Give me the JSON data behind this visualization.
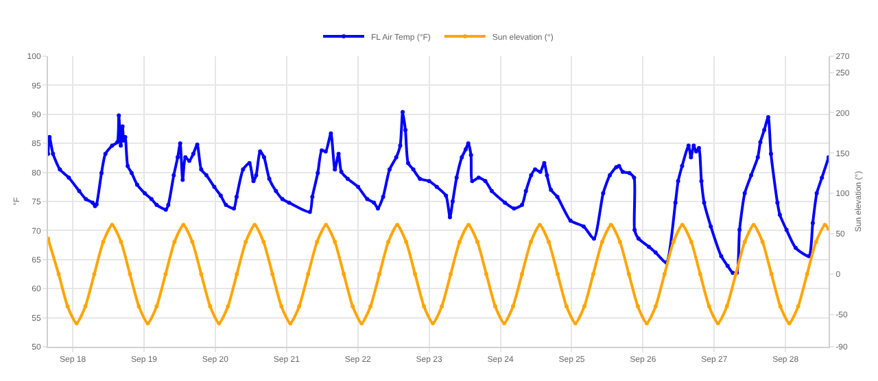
{
  "chart_data": {
    "type": "line",
    "ylabel": "°F",
    "y2label": "Sun elevation (°)",
    "legend": "top",
    "grid": true,
    "marker": "circle",
    "line_style": "solid",
    "xlim": [
      "--09-17T15:40",
      "--09-28T14:30"
    ],
    "xticks": [
      {
        "value": "--09-18",
        "label": "Sep 18"
      },
      {
        "value": "--09-19",
        "label": "Sep 19"
      },
      {
        "value": "--09-20",
        "label": "Sep 20"
      },
      {
        "value": "--09-21",
        "label": "Sep 21"
      },
      {
        "value": "--09-22",
        "label": "Sep 22"
      },
      {
        "value": "--09-23",
        "label": "Sep 23"
      },
      {
        "value": "--09-24",
        "label": "Sep 24"
      },
      {
        "value": "--09-25",
        "label": "Sep 25"
      },
      {
        "value": "--09-26",
        "label": "Sep 26"
      },
      {
        "value": "--09-27",
        "label": "Sep 27"
      },
      {
        "value": "--09-28",
        "label": "Sep 28"
      }
    ],
    "ylim": [
      50,
      100
    ],
    "yticks": [
      50,
      55,
      60,
      65,
      70,
      75,
      80,
      85,
      90,
      95,
      100
    ],
    "y2lim": [
      -90,
      270
    ],
    "y2ticks": [
      -90,
      -50,
      0,
      50,
      100,
      150,
      200,
      250,
      270
    ],
    "series": [
      {
        "name": "FL Air Temp (°F)",
        "color": "#0000ff",
        "x": [
          "--09-17T15:40",
          "--09-17T16:10",
          "--09-17T17:20",
          "--09-17T19:40",
          "--09-17T22:40",
          "--09-18T02:10",
          "--09-18T04:25",
          "--09-18T06:40",
          "--09-18T07:30",
          "--09-18T08:00",
          "--09-18T09:40",
          "--09-18T11:00",
          "--09-18T13:15",
          "--09-18T15:00",
          "--09-18T15:30",
          "--09-18T16:10",
          "--09-18T16:45",
          "--09-18T17:10",
          "--09-18T17:40",
          "--09-18T18:30",
          "--09-18T19:50",
          "--09-18T21:40",
          "--09-19T00:15",
          "--09-19T02:30",
          "--09-19T04:15",
          "--09-19T07:20",
          "--09-19T08:10",
          "--09-19T10:00",
          "--09-19T11:20",
          "--09-19T12:10",
          "--09-19T13:00",
          "--09-19T13:55",
          "--09-19T15:15",
          "--09-19T16:35",
          "--09-19T17:55",
          "--09-19T19:15",
          "--09-19T21:00",
          "--09-19T23:40",
          "--09-20T01:50",
          "--09-20T03:35",
          "--09-20T06:15",
          "--09-20T07:10",
          "--09-20T09:20",
          "--09-20T11:30",
          "--09-20T12:50",
          "--09-20T13:45",
          "--09-20T15:05",
          "--09-20T16:25",
          "--09-20T18:10",
          "--09-20T20:25",
          "--09-20T22:35",
          "--09-21T00:50",
          "--09-21T07:50",
          "--09-21T08:40",
          "--09-21T10:30",
          "--09-21T11:50",
          "--09-21T13:10",
          "--09-21T14:55",
          "--09-21T16:15",
          "--09-21T17:30",
          "--09-21T18:25",
          "--09-21T20:35",
          "--09-22T00:05",
          "--09-22T03:10",
          "--09-22T05:25",
          "--09-22T06:45",
          "--09-22T08:30",
          "--09-22T10:40",
          "--09-22T12:55",
          "--09-22T14:15",
          "--09-22T15:05",
          "--09-22T16:00",
          "--09-22T16:55",
          "--09-22T18:40",
          "--09-22T20:55",
          "--09-23T00:00",
          "--09-23T02:35",
          "--09-23T05:40",
          "--09-23T07:00",
          "--09-23T07:55",
          "--09-23T09:15",
          "--09-23T11:00",
          "--09-23T12:20",
          "--09-23T13:10",
          "--09-23T14:05",
          "--09-23T14:30",
          "--09-23T16:40",
          "--09-23T18:55",
          "--09-23T21:05",
          "--09-24T01:30",
          "--09-24T04:35",
          "--09-24T07:15",
          "--09-24T08:35",
          "--09-24T10:20",
          "--09-24T11:40",
          "--09-24T13:25",
          "--09-24T14:45",
          "--09-24T15:40",
          "--09-24T17:00",
          "--09-24T19:10",
          "--09-24T23:35",
          "--09-25T04:00",
          "--09-25T07:30",
          "--09-25T10:35",
          "--09-25T12:50",
          "--09-25T15:00",
          "--09-25T15:55",
          "--09-25T17:10",
          "--09-25T19:25",
          "--09-25T21:00",
          "--09-25T21:10",
          "--09-25T22:30",
          "--09-26T02:00",
          "--09-26T04:15",
          "--09-26T07:50",
          "--09-26T10:55",
          "--09-26T11:50",
          "--09-26T13:10",
          "--09-26T15:20",
          "--09-26T16:10",
          "--09-26T17:05",
          "--09-26T17:55",
          "--09-26T18:50",
          "--09-26T19:40",
          "--09-26T20:35",
          "--09-26T22:50",
          "--09-27T02:20",
          "--09-27T04:30",
          "--09-27T06:15",
          "--09-27T07:35",
          "--09-27T08:30",
          "--09-27T10:15",
          "--09-27T12:25",
          "--09-27T14:40",
          "--09-27T15:30",
          "--09-27T16:50",
          "--09-27T18:10",
          "--09-27T19:05",
          "--09-27T21:15",
          "--09-27T22:05",
          "--09-28T00:20",
          "--09-28T03:25",
          "--09-28T07:50",
          "--09-28T09:10",
          "--09-28T10:30",
          "--09-28T12:15",
          "--09-28T14:30"
        ],
        "values": [
          83.2,
          86.1,
          83.2,
          80.5,
          79.1,
          76.8,
          75.4,
          74.8,
          74.2,
          74.5,
          79.9,
          83.2,
          84.6,
          85.2,
          89.8,
          84.6,
          87.9,
          85.5,
          86.1,
          81.1,
          79.9,
          77.9,
          76.4,
          75.4,
          74.4,
          73.6,
          74.4,
          79.5,
          82.6,
          85.0,
          78.7,
          82.6,
          82.0,
          83.2,
          84.8,
          80.5,
          79.5,
          77.5,
          76.0,
          74.4,
          73.8,
          75.8,
          80.5,
          81.6,
          78.5,
          79.5,
          83.6,
          82.6,
          78.9,
          76.8,
          75.4,
          74.8,
          73.2,
          75.8,
          79.9,
          83.8,
          83.6,
          86.7,
          80.5,
          83.2,
          80.1,
          78.9,
          77.5,
          75.4,
          74.8,
          73.8,
          75.8,
          80.5,
          82.6,
          84.6,
          90.4,
          87.3,
          81.6,
          80.5,
          78.9,
          78.5,
          77.5,
          76.0,
          72.3,
          75.0,
          79.1,
          82.6,
          84.0,
          85.0,
          83.0,
          78.5,
          79.1,
          78.5,
          76.8,
          74.8,
          73.8,
          74.4,
          76.8,
          79.5,
          80.5,
          80.1,
          81.6,
          79.5,
          77.0,
          75.8,
          71.7,
          70.7,
          68.6,
          76.4,
          79.5,
          80.9,
          81.1,
          80.1,
          79.9,
          79.1,
          70.1,
          68.6,
          67.2,
          66.2,
          64.5,
          74.8,
          78.5,
          81.1,
          84.6,
          82.6,
          84.6,
          83.6,
          84.2,
          78.5,
          74.8,
          70.7,
          65.6,
          63.9,
          62.7,
          62.7,
          70.1,
          76.4,
          79.5,
          82.6,
          85.2,
          87.3,
          89.5,
          83.2,
          74.8,
          72.7,
          70.1,
          67.0,
          65.6,
          71.3,
          76.4,
          79.1,
          82.6
        ]
      },
      {
        "name": "Sun elevation (°)",
        "color": "#ffa500",
        "axis": "y2",
        "x": [
          "--09-17T15:40",
          "--09-17T19:15",
          "--09-17T22:15",
          "--09-18T01:15",
          "--09-18T04:15",
          "--09-18T07:15",
          "--09-18T10:15",
          "--09-18T13:15",
          "--09-18T16:15",
          "--09-18T19:15",
          "--09-18T22:15",
          "--09-19T01:15",
          "--09-19T04:15",
          "--09-19T07:15",
          "--09-19T10:15",
          "--09-19T13:15",
          "--09-19T16:15",
          "--09-19T19:15",
          "--09-19T22:15",
          "--09-20T01:15",
          "--09-20T04:15",
          "--09-20T07:15",
          "--09-20T10:15",
          "--09-20T13:15",
          "--09-20T16:15",
          "--09-20T19:15",
          "--09-20T22:15",
          "--09-21T01:15",
          "--09-21T04:15",
          "--09-21T07:15",
          "--09-21T10:15",
          "--09-21T13:15",
          "--09-21T16:15",
          "--09-21T19:15",
          "--09-21T22:15",
          "--09-22T01:15",
          "--09-22T04:15",
          "--09-22T07:15",
          "--09-22T10:15",
          "--09-22T13:15",
          "--09-22T16:15",
          "--09-22T19:15",
          "--09-22T22:15",
          "--09-23T01:15",
          "--09-23T04:15",
          "--09-23T07:15",
          "--09-23T10:15",
          "--09-23T13:15",
          "--09-23T16:15",
          "--09-23T19:15",
          "--09-23T22:15",
          "--09-24T01:15",
          "--09-24T04:15",
          "--09-24T07:15",
          "--09-24T10:15",
          "--09-24T13:15",
          "--09-24T16:15",
          "--09-24T19:15",
          "--09-24T22:15",
          "--09-25T01:15",
          "--09-25T04:15",
          "--09-25T07:15",
          "--09-25T10:15",
          "--09-25T13:15",
          "--09-25T16:15",
          "--09-25T19:15",
          "--09-25T22:15",
          "--09-26T01:15",
          "--09-26T04:15",
          "--09-26T07:15",
          "--09-26T10:15",
          "--09-26T13:15",
          "--09-26T16:15",
          "--09-26T19:15",
          "--09-26T22:15",
          "--09-27T01:15",
          "--09-27T04:15",
          "--09-27T07:15",
          "--09-27T10:15",
          "--09-27T13:15",
          "--09-27T16:15",
          "--09-27T19:15",
          "--09-27T22:15",
          "--09-28T01:15",
          "--09-28T04:15",
          "--09-28T07:15",
          "--09-28T10:15",
          "--09-28T13:15",
          "--09-28T14:30"
        ],
        "values": [
          44,
          0,
          -40,
          -61,
          -40,
          0,
          40,
          61,
          40,
          0,
          -40,
          -61,
          -40,
          0,
          40,
          61,
          40,
          0,
          -40,
          -61,
          -40,
          0,
          40,
          61,
          40,
          0,
          -40,
          -61,
          -40,
          0,
          40,
          61,
          40,
          0,
          -40,
          -61,
          -40,
          0,
          40,
          61,
          40,
          0,
          -40,
          -61,
          -40,
          0,
          40,
          61,
          40,
          0,
          -40,
          -61,
          -40,
          0,
          40,
          61,
          40,
          0,
          -40,
          -61,
          -40,
          0,
          40,
          61,
          40,
          0,
          -40,
          -61,
          -40,
          0,
          40,
          61,
          40,
          0,
          -40,
          -61,
          -40,
          0,
          40,
          61,
          40,
          0,
          -40,
          -61,
          -40,
          0,
          40,
          61,
          56
        ]
      }
    ]
  }
}
